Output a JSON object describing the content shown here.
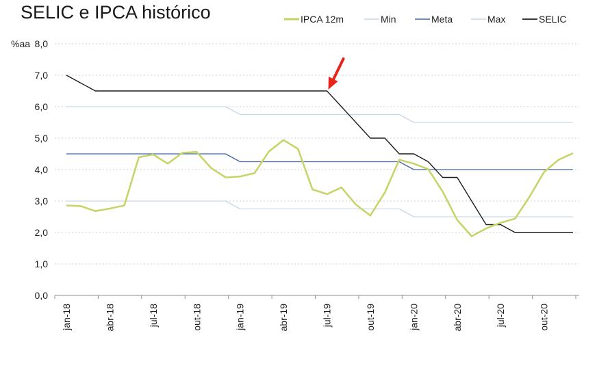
{
  "chart_data": {
    "type": "line",
    "title": "SELIC e IPCA histórico",
    "ylabel": "%aa",
    "ylim": [
      0,
      8
    ],
    "yticks": [
      "0,0",
      "1,0",
      "2,0",
      "3,0",
      "4,0",
      "5,0",
      "6,0",
      "7,0",
      "8,0"
    ],
    "grid": true,
    "legend_position": "top",
    "x_start": "jan-18",
    "x_tick_labels": [
      "jan-18",
      "abr-18",
      "jul-18",
      "out-18",
      "jan-19",
      "abr-19",
      "jul-19",
      "out-19",
      "jan-20",
      "abr-20",
      "jul-20",
      "out-20"
    ],
    "x": [
      "jan-18",
      "fev-18",
      "mar-18",
      "abr-18",
      "mai-18",
      "jun-18",
      "jul-18",
      "ago-18",
      "set-18",
      "out-18",
      "nov-18",
      "dez-18",
      "jan-19",
      "fev-19",
      "mar-19",
      "abr-19",
      "mai-19",
      "jun-19",
      "jul-19",
      "ago-19",
      "set-19",
      "out-19",
      "nov-19",
      "dez-19",
      "jan-20",
      "fev-20",
      "mar-20",
      "abr-20",
      "mai-20",
      "jun-20",
      "jul-20",
      "ago-20",
      "set-20",
      "out-20",
      "nov-20",
      "dez-20"
    ],
    "series": [
      {
        "name": "IPCA 12m",
        "color": "#c8d46a",
        "width": 2.6,
        "values": [
          2.86,
          2.84,
          2.68,
          2.76,
          2.86,
          4.39,
          4.48,
          4.19,
          4.53,
          4.56,
          4.05,
          3.75,
          3.78,
          3.89,
          4.58,
          4.94,
          4.66,
          3.37,
          3.22,
          3.43,
          2.89,
          2.54,
          3.27,
          4.31,
          4.19,
          4.01,
          3.3,
          2.4,
          1.88,
          2.13,
          2.31,
          2.44,
          3.14,
          3.92,
          4.31,
          4.52
        ]
      },
      {
        "name": "Min",
        "color": "#c9d7e6",
        "width": 1.3,
        "values": [
          3.0,
          3.0,
          3.0,
          3.0,
          3.0,
          3.0,
          3.0,
          3.0,
          3.0,
          3.0,
          3.0,
          3.0,
          2.75,
          2.75,
          2.75,
          2.75,
          2.75,
          2.75,
          2.75,
          2.75,
          2.75,
          2.75,
          2.75,
          2.75,
          2.5,
          2.5,
          2.5,
          2.5,
          2.5,
          2.5,
          2.5,
          2.5,
          2.5,
          2.5,
          2.5,
          2.5
        ]
      },
      {
        "name": "Meta",
        "color": "#3f63a6",
        "width": 1.3,
        "values": [
          4.5,
          4.5,
          4.5,
          4.5,
          4.5,
          4.5,
          4.5,
          4.5,
          4.5,
          4.5,
          4.5,
          4.5,
          4.25,
          4.25,
          4.25,
          4.25,
          4.25,
          4.25,
          4.25,
          4.25,
          4.25,
          4.25,
          4.25,
          4.25,
          4.0,
          4.0,
          4.0,
          4.0,
          4.0,
          4.0,
          4.0,
          4.0,
          4.0,
          4.0,
          4.0,
          4.0
        ]
      },
      {
        "name": "Max",
        "color": "#c9d7e6",
        "width": 1.3,
        "values": [
          6.0,
          6.0,
          6.0,
          6.0,
          6.0,
          6.0,
          6.0,
          6.0,
          6.0,
          6.0,
          6.0,
          6.0,
          5.75,
          5.75,
          5.75,
          5.75,
          5.75,
          5.75,
          5.75,
          5.75,
          5.75,
          5.75,
          5.75,
          5.75,
          5.5,
          5.5,
          5.5,
          5.5,
          5.5,
          5.5,
          5.5,
          5.5,
          5.5,
          5.5,
          5.5,
          5.5
        ]
      },
      {
        "name": "SELIC",
        "color": "#1c1c1c",
        "width": 1.4,
        "values": [
          7.0,
          6.75,
          6.5,
          6.5,
          6.5,
          6.5,
          6.5,
          6.5,
          6.5,
          6.5,
          6.5,
          6.5,
          6.5,
          6.5,
          6.5,
          6.5,
          6.5,
          6.5,
          6.5,
          6.0,
          5.5,
          5.0,
          5.0,
          4.5,
          4.5,
          4.25,
          3.75,
          3.75,
          3.0,
          2.25,
          2.25,
          2.0,
          2.0,
          2.0,
          2.0,
          2.0
        ]
      }
    ],
    "annotation": {
      "type": "arrow",
      "color": "#e8231c",
      "target_x": "jul-19",
      "target_y": 6.5
    }
  }
}
